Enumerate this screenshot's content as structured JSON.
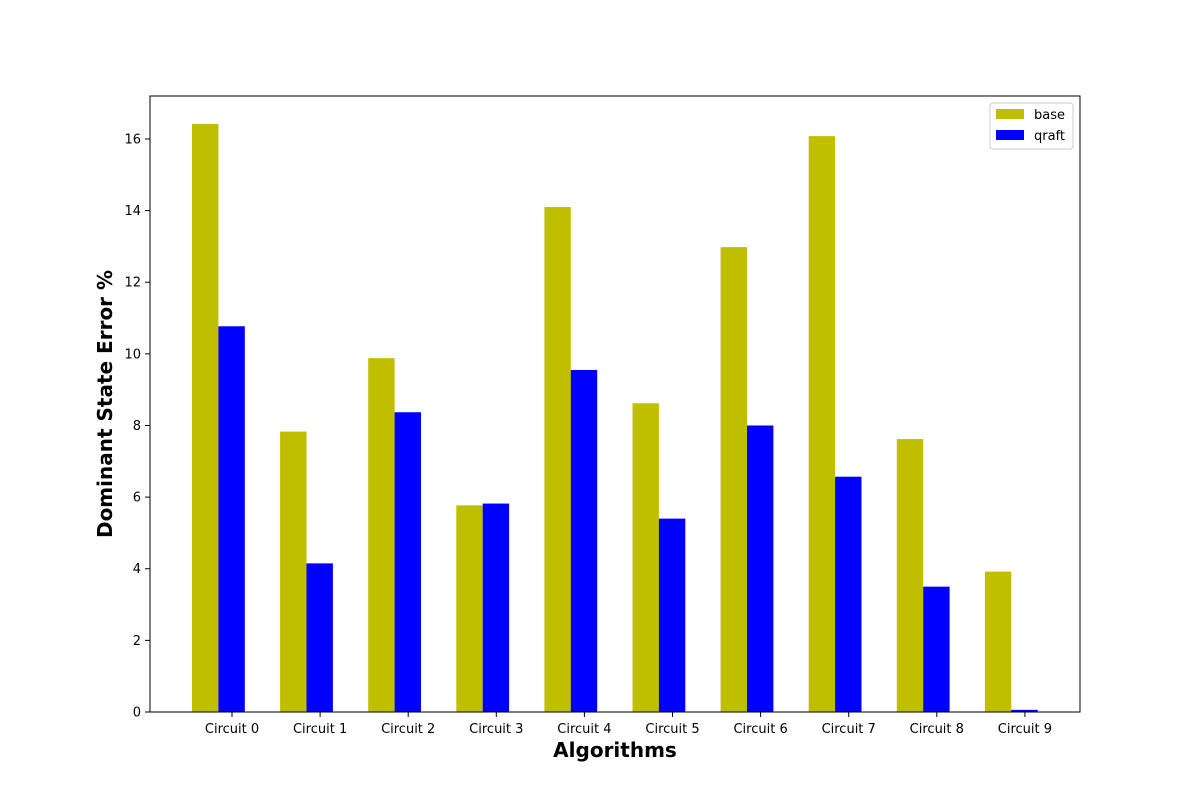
{
  "chart_data": {
    "type": "bar",
    "title": "",
    "xlabel": "Algorithms",
    "ylabel": "Dominant State Error %",
    "categories": [
      "Circuit 0",
      "Circuit 1",
      "Circuit 2",
      "Circuit 3",
      "Circuit 4",
      "Circuit 5",
      "Circuit 6",
      "Circuit 7",
      "Circuit 8",
      "Circuit 9"
    ],
    "series": [
      {
        "name": "base",
        "color": "#bfbf00",
        "values": [
          16.42,
          7.83,
          9.88,
          5.77,
          14.1,
          8.62,
          12.98,
          16.08,
          7.62,
          3.92
        ]
      },
      {
        "name": "qraft",
        "color": "#0000ff",
        "values": [
          10.77,
          4.15,
          8.37,
          5.82,
          9.55,
          5.4,
          8.0,
          6.57,
          3.5,
          0.06
        ]
      }
    ],
    "ylim": [
      0,
      17.2
    ],
    "yticks": [
      0,
      2,
      4,
      6,
      8,
      10,
      12,
      14,
      16
    ],
    "grid": false,
    "legend_position": "top-right"
  }
}
